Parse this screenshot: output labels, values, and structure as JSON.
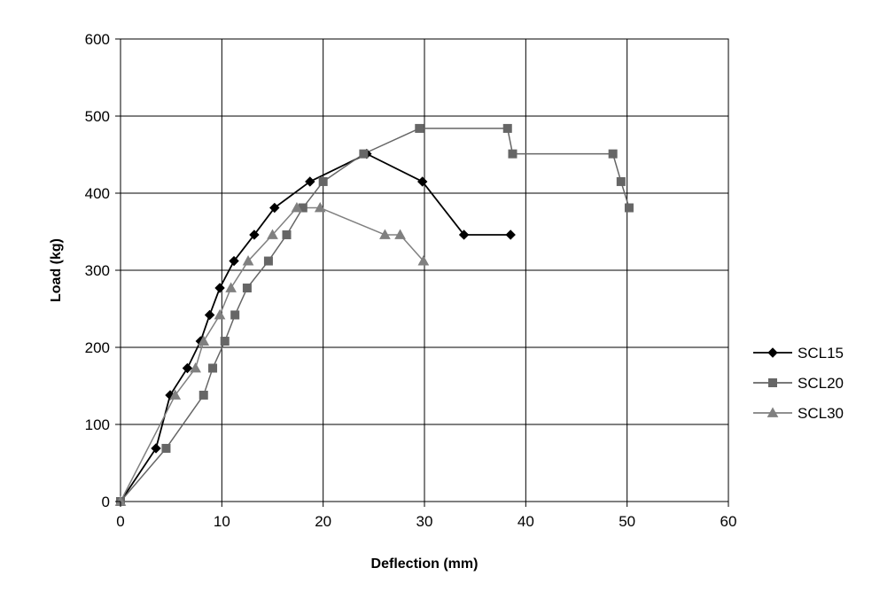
{
  "chart_data": {
    "type": "line",
    "title": "",
    "xlabel": "Deflection (mm)",
    "ylabel": "Load (kg)",
    "xlim": [
      0,
      60
    ],
    "ylim": [
      0,
      600
    ],
    "xticks": [
      0,
      10,
      20,
      30,
      40,
      50,
      60
    ],
    "yticks": [
      0,
      100,
      200,
      300,
      400,
      500,
      600
    ],
    "grid": true,
    "legend_position": "right",
    "series": [
      {
        "name": "SCL15",
        "color": "#000000",
        "marker": "diamond",
        "points": [
          [
            0,
            0
          ],
          [
            3.5,
            69
          ],
          [
            4.9,
            138
          ],
          [
            6.6,
            173
          ],
          [
            7.9,
            208
          ],
          [
            8.8,
            242
          ],
          [
            9.8,
            277
          ],
          [
            11.2,
            312
          ],
          [
            13.2,
            346
          ],
          [
            15.2,
            381
          ],
          [
            18.7,
            415
          ],
          [
            24.3,
            451
          ],
          [
            29.8,
            415
          ],
          [
            33.9,
            346
          ],
          [
            38.5,
            346
          ]
        ]
      },
      {
        "name": "SCL20",
        "color": "#666666",
        "marker": "square",
        "points": [
          [
            0,
            0
          ],
          [
            4.5,
            69
          ],
          [
            8.2,
            138
          ],
          [
            9.1,
            173
          ],
          [
            10.3,
            208
          ],
          [
            11.3,
            242
          ],
          [
            12.5,
            277
          ],
          [
            14.6,
            312
          ],
          [
            16.4,
            346
          ],
          [
            18.0,
            381
          ],
          [
            20.0,
            415
          ],
          [
            24.0,
            451
          ],
          [
            29.5,
            484
          ],
          [
            38.2,
            484
          ],
          [
            38.7,
            451
          ],
          [
            48.6,
            451
          ],
          [
            49.4,
            415
          ],
          [
            50.2,
            381
          ]
        ]
      },
      {
        "name": "SCL30",
        "color": "#808080",
        "marker": "triangle",
        "points": [
          [
            0,
            0
          ],
          [
            5.4,
            138
          ],
          [
            7.4,
            173
          ],
          [
            8.2,
            208
          ],
          [
            9.8,
            242
          ],
          [
            10.9,
            277
          ],
          [
            12.6,
            312
          ],
          [
            15.0,
            346
          ],
          [
            17.4,
            381
          ],
          [
            19.7,
            381
          ],
          [
            26.1,
            346
          ],
          [
            27.6,
            346
          ],
          [
            29.9,
            312
          ]
        ]
      }
    ]
  }
}
